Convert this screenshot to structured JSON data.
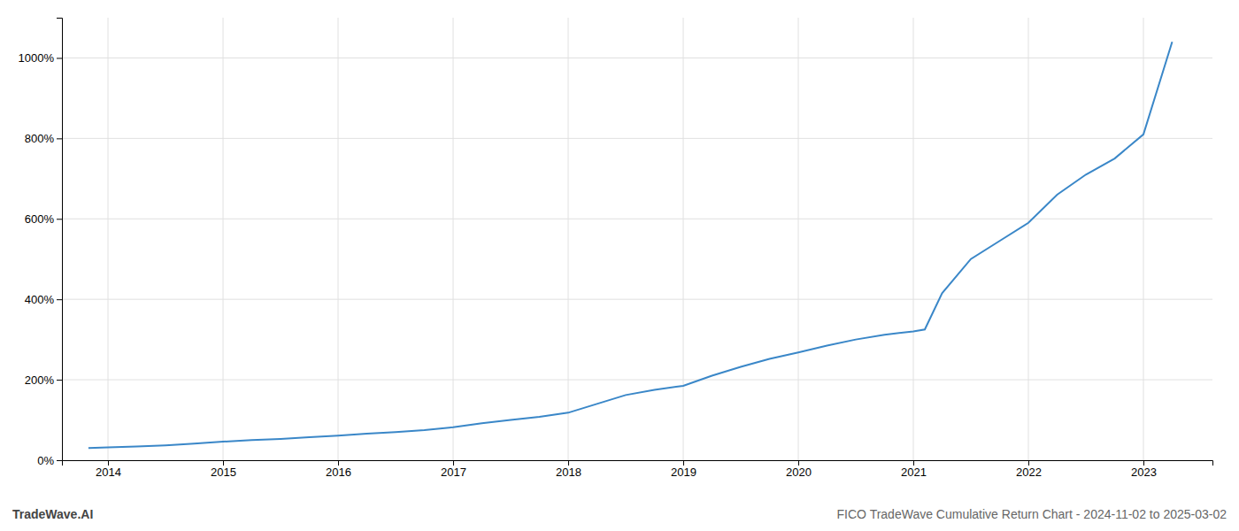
{
  "chart_data": {
    "type": "line",
    "title": "FICO TradeWave Cumulative Return Chart - 2024-11-02 to 2025-03-02",
    "annotations": [
      "TradeWave.AI"
    ],
    "color": "#3a87c8",
    "grid": true,
    "x": [
      2013.83,
      2014.0,
      2014.25,
      2014.5,
      2014.75,
      2015.0,
      2015.25,
      2015.5,
      2015.75,
      2016.0,
      2016.25,
      2016.5,
      2016.75,
      2017.0,
      2017.25,
      2017.5,
      2017.75,
      2018.0,
      2018.25,
      2018.5,
      2018.75,
      2019.0,
      2019.25,
      2019.5,
      2019.75,
      2020.0,
      2020.25,
      2020.5,
      2020.75,
      2021.0,
      2021.1,
      2021.25,
      2021.5,
      2021.75,
      2022.0,
      2022.25,
      2022.5,
      2022.75,
      2023.0,
      2023.25
    ],
    "values": [
      30,
      32,
      34,
      37,
      41,
      46,
      50,
      53,
      57,
      61,
      66,
      70,
      75,
      82,
      92,
      100,
      108,
      118,
      140,
      162,
      175,
      185,
      210,
      232,
      252,
      268,
      285,
      300,
      312,
      320,
      325,
      415,
      500,
      545,
      590,
      660,
      710,
      750,
      810,
      1040
    ],
    "xlim": [
      2013.6,
      2023.6
    ],
    "xticks": [
      2014,
      2015,
      2016,
      2017,
      2018,
      2019,
      2020,
      2021,
      2022,
      2023
    ],
    "ylim": [
      0,
      1100
    ],
    "yticks": [
      {
        "value": 0,
        "label": "0%"
      },
      {
        "value": 200,
        "label": "200%"
      },
      {
        "value": 400,
        "label": "400%"
      },
      {
        "value": 600,
        "label": "600%"
      },
      {
        "value": 800,
        "label": "800%"
      },
      {
        "value": 1000,
        "label": "1000%"
      }
    ]
  }
}
